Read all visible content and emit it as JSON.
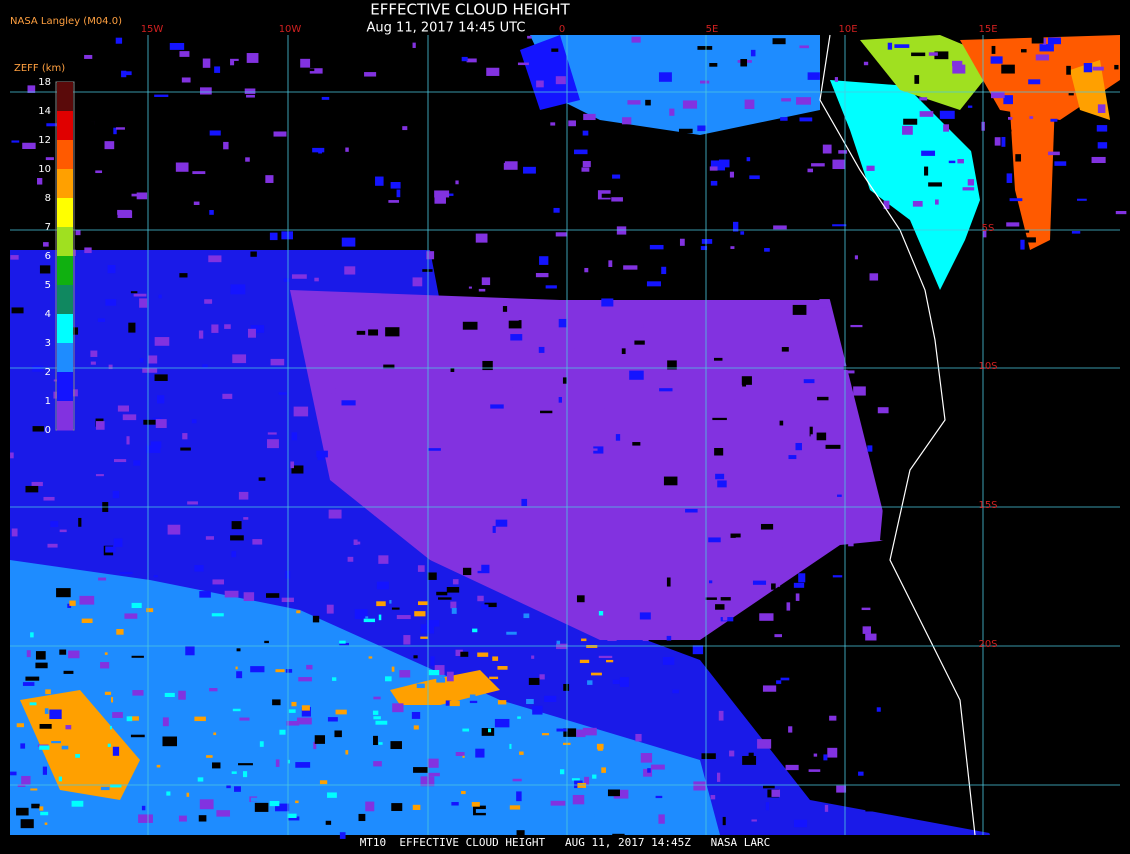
{
  "header": {
    "title": "EFFECTIVE CLOUD HEIGHT",
    "subtitle": "Aug 11, 2017 14:45 UTC",
    "source": "NASA Langley (M04.0)"
  },
  "map": {
    "longitude_labels": [
      "15W",
      "10W",
      "0",
      "5E",
      "10E",
      "15E"
    ],
    "latitude_labels": [
      "5S",
      "10S",
      "15S",
      "20S"
    ]
  },
  "legend": {
    "title": "ZEFF (km)",
    "labels": [
      "18",
      "14",
      "12",
      "10",
      "8",
      "7",
      "6",
      "5",
      "4",
      "3",
      "2",
      "1",
      "0"
    ],
    "colors": [
      "#5a0a0a",
      "#e00000",
      "#ff5a00",
      "#ffa000",
      "#ffff00",
      "#a0e020",
      "#10b010",
      "#108860",
      "#00ffff",
      "#1e8cff",
      "#1414ff",
      "#8232e0"
    ]
  },
  "footer": {
    "text": "MT10  EFFECTIVE CLOUD HEIGHT   AUG 11, 2017 14:45Z   NASA LARC"
  }
}
